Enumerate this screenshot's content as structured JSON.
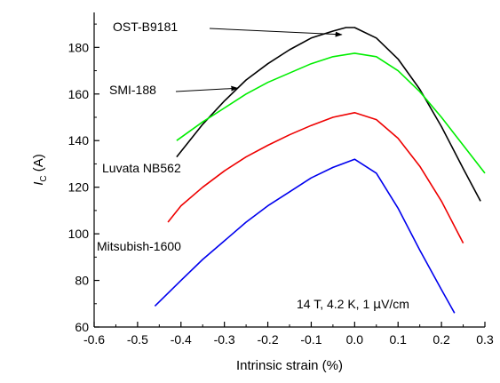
{
  "chart_data": {
    "type": "line",
    "title": "",
    "xlabel": "Intrinsic strain (%)",
    "ylabel": {
      "main": "I",
      "sub": "C",
      "unit": " (A)"
    },
    "xlim": [
      -0.6,
      0.3
    ],
    "ylim": [
      60,
      195
    ],
    "x_ticks": [
      -0.6,
      -0.5,
      -0.4,
      -0.3,
      -0.2,
      -0.1,
      0.0,
      0.1,
      0.2,
      0.3
    ],
    "x_tick_labels": [
      "-0.6",
      "-0.5",
      "-0.4",
      "-0.3",
      "-0.2",
      "-0.1",
      "0.0",
      "0.1",
      "0.2",
      "0.3"
    ],
    "y_ticks": [
      60,
      80,
      100,
      120,
      140,
      160,
      180
    ],
    "y_tick_labels": [
      "60",
      "80",
      "100",
      "120",
      "140",
      "160",
      "180"
    ],
    "grid": false,
    "annotation": {
      "prefix": "14 T, 4.2 K, 1 ",
      "mu": "μ",
      "suffix": "V/cm"
    },
    "series": [
      {
        "name": "OST-B9181",
        "color": "#000000",
        "x": [
          -0.41,
          -0.35,
          -0.3,
          -0.25,
          -0.2,
          -0.15,
          -0.1,
          -0.05,
          -0.02,
          0.0,
          0.05,
          0.1,
          0.15,
          0.2,
          0.25,
          0.29
        ],
        "y": [
          133,
          147,
          157,
          166,
          173,
          179,
          184,
          187,
          188.5,
          188.5,
          184,
          175,
          162,
          146,
          128,
          114
        ]
      },
      {
        "name": "SMI-188",
        "color": "#00ee00",
        "x": [
          -0.41,
          -0.35,
          -0.3,
          -0.25,
          -0.2,
          -0.15,
          -0.1,
          -0.05,
          0.0,
          0.05,
          0.1,
          0.15,
          0.2,
          0.25,
          0.3
        ],
        "y": [
          140,
          148,
          154,
          160,
          165,
          169,
          173,
          176,
          177.5,
          176,
          170,
          161,
          150,
          138,
          126
        ]
      },
      {
        "name": "Luvata NB562",
        "color": "#ee0000",
        "x": [
          -0.43,
          -0.4,
          -0.35,
          -0.3,
          -0.25,
          -0.2,
          -0.15,
          -0.1,
          -0.05,
          0.0,
          0.05,
          0.1,
          0.15,
          0.2,
          0.25
        ],
        "y": [
          105,
          112,
          120,
          127,
          133,
          138,
          142.5,
          146.5,
          150,
          152,
          149,
          141,
          129,
          114,
          96
        ]
      },
      {
        "name": "Mitsubish-1600",
        "color": "#0000ee",
        "x": [
          -0.46,
          -0.4,
          -0.35,
          -0.3,
          -0.25,
          -0.2,
          -0.15,
          -0.1,
          -0.05,
          0.0,
          0.05,
          0.1,
          0.15,
          0.2,
          0.23
        ],
        "y": [
          69,
          80,
          89,
          97,
          105,
          112,
          118,
          124,
          128.5,
          132,
          126,
          111,
          93,
          76,
          66
        ]
      }
    ],
    "series_labels": [
      {
        "series": 0,
        "text": "OST-B9181",
        "arrow_to": [
          -0.03,
          185.5
        ]
      },
      {
        "series": 1,
        "text": "SMI-188",
        "arrow_to": [
          -0.27,
          162.5
        ]
      },
      {
        "series": 2,
        "text": "Luvata NB562",
        "arrow_to": null
      },
      {
        "series": 3,
        "text": "Mitsubish-1600",
        "arrow_to": null
      }
    ]
  }
}
